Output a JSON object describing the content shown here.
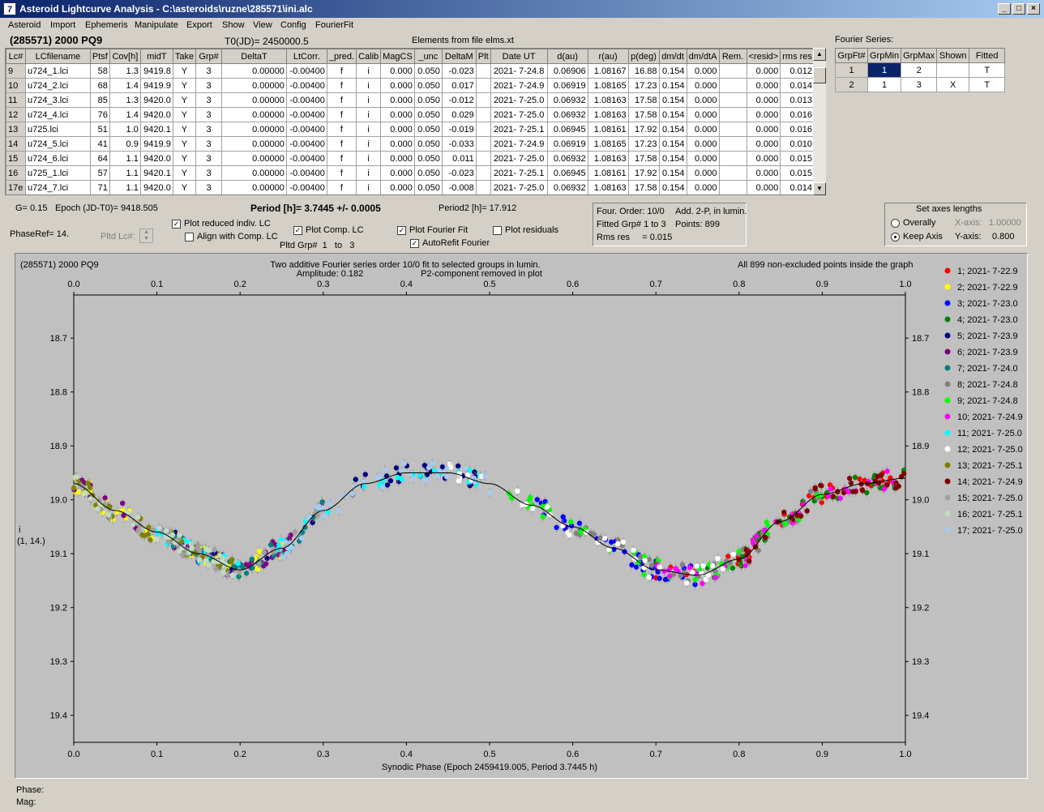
{
  "window": {
    "title": "Asteroid Lightcurve Analysis - C:\\asteroids\\ruzne\\285571\\ini.alc",
    "icon": "app-icon"
  },
  "menu": [
    "Asteroid",
    "Import",
    "Ephemeris",
    "Manipulate",
    "Export",
    "Show",
    "View",
    "Config",
    "FourierFit"
  ],
  "header": {
    "asteroid": "(285571) 2000 PQ9",
    "t0": "T0(JD)= 2450000.5",
    "elements": "Elements from file elms.xt",
    "fourier_series_label": "Fourier Series:"
  },
  "lc_table": {
    "columns": [
      "Lc#",
      "LCfilename",
      "Ptsf",
      "Cov[h]",
      "midT",
      "Take",
      "Grp#",
      "DeltaT",
      "LtCorr.",
      "_pred.",
      "Calib",
      "MagCS",
      "_unc",
      "DeltaM",
      "Plt",
      "Date UT",
      "d(au)",
      "r(au)",
      "p(deg)",
      "dm/dt",
      "dm/dtA",
      "Rem.",
      "<resid>",
      "rms res"
    ],
    "rows": [
      [
        "9",
        "u724_1.lci",
        "58",
        "1.3",
        "9419.8",
        "Y",
        "3",
        "0.00000",
        "-0.00400",
        "f",
        "i",
        "0.000",
        "0.050",
        "-0.023",
        "",
        "2021- 7-24.8",
        "0.06906",
        "1.08167",
        "16.88",
        "0.154",
        "0.000",
        "",
        "0.000",
        "0.012"
      ],
      [
        "10",
        "u724_2.lci",
        "68",
        "1.4",
        "9419.9",
        "Y",
        "3",
        "0.00000",
        "-0.00400",
        "f",
        "i",
        "0.000",
        "0.050",
        "0.017",
        "",
        "2021- 7-24.9",
        "0.06919",
        "1.08165",
        "17.23",
        "0.154",
        "0.000",
        "",
        "0.000",
        "0.014"
      ],
      [
        "11",
        "u724_3.lci",
        "85",
        "1.3",
        "9420.0",
        "Y",
        "3",
        "0.00000",
        "-0.00400",
        "f",
        "i",
        "0.000",
        "0.050",
        "-0.012",
        "",
        "2021- 7-25.0",
        "0.06932",
        "1.08163",
        "17.58",
        "0.154",
        "0.000",
        "",
        "0.000",
        "0.013"
      ],
      [
        "12",
        "u724_4.lci",
        "76",
        "1.4",
        "9420.0",
        "Y",
        "3",
        "0.00000",
        "-0.00400",
        "f",
        "i",
        "0.000",
        "0.050",
        "0.029",
        "",
        "2021- 7-25.0",
        "0.06932",
        "1.08163",
        "17.58",
        "0.154",
        "0.000",
        "",
        "0.000",
        "0.016"
      ],
      [
        "13",
        "u725.lci",
        "51",
        "1.0",
        "9420.1",
        "Y",
        "3",
        "0.00000",
        "-0.00400",
        "f",
        "i",
        "0.000",
        "0.050",
        "-0.019",
        "",
        "2021- 7-25.1",
        "0.06945",
        "1.08161",
        "17.92",
        "0.154",
        "0.000",
        "",
        "0.000",
        "0.016"
      ],
      [
        "14",
        "u724_5.lci",
        "41",
        "0.9",
        "9419.9",
        "Y",
        "3",
        "0.00000",
        "-0.00400",
        "f",
        "i",
        "0.000",
        "0.050",
        "-0.033",
        "",
        "2021- 7-24.9",
        "0.06919",
        "1.08165",
        "17.23",
        "0.154",
        "0.000",
        "",
        "0.000",
        "0.010"
      ],
      [
        "15",
        "u724_6.lci",
        "64",
        "1.1",
        "9420.0",
        "Y",
        "3",
        "0.00000",
        "-0.00400",
        "f",
        "i",
        "0.000",
        "0.050",
        "0.011",
        "",
        "2021- 7-25.0",
        "0.06932",
        "1.08163",
        "17.58",
        "0.154",
        "0.000",
        "",
        "0.000",
        "0.015"
      ],
      [
        "16",
        "u725_1.lci",
        "57",
        "1.1",
        "9420.1",
        "Y",
        "3",
        "0.00000",
        "-0.00400",
        "f",
        "i",
        "0.000",
        "0.050",
        "-0.023",
        "",
        "2021- 7-25.1",
        "0.06945",
        "1.08161",
        "17.92",
        "0.154",
        "0.000",
        "",
        "0.000",
        "0.015"
      ],
      [
        "17e",
        "u724_7.lci",
        "71",
        "1.1",
        "9420.0",
        "Y",
        "3",
        "0.00000",
        "-0.00400",
        "f",
        "i",
        "0.000",
        "0.050",
        "-0.008",
        "",
        "2021- 7-25.0",
        "0.06932",
        "1.08163",
        "17.58",
        "0.154",
        "0.000",
        "",
        "0.000",
        "0.014"
      ]
    ]
  },
  "fourier_table": {
    "columns": [
      "GrpFt#",
      "GrpMin",
      "GrpMax",
      "Shown",
      "Fitted"
    ],
    "rows": [
      [
        "1",
        "1",
        "2",
        "",
        "T"
      ],
      [
        "2",
        "1",
        "3",
        "X",
        "T"
      ]
    ]
  },
  "controls": {
    "g": "G= 0.15",
    "epoch": "Epoch (JD-T0)= 9418.505",
    "period": "Period [h]= 3.7445 +/- 0.0005",
    "period2": "Period2 [h]= 17.912",
    "phaseref": "PhaseRef= 14.",
    "pltd_lc": "Pltd Lc#:",
    "plot_reduced": "Plot reduced indiv. LC",
    "align_comp": "Align with Comp. LC",
    "plot_comp": "Plot Comp. LC",
    "pltd_grp": "Pltd Grp#",
    "grp_from": "1",
    "grp_to_label": "to",
    "grp_to": "3",
    "plot_fourier": "Plot Fourier Fit",
    "autorefit": "AutoRefit Fourier",
    "plot_residuals": "Plot residuals"
  },
  "fit_info": {
    "order": "Four. Order: 10/0",
    "add": "Add. 2-P, in lumin.",
    "fitted": "Fitted Grp# 1 to 3",
    "points": "Points: 899",
    "rms": "Rms res     = 0.015"
  },
  "axes_lengths": {
    "title": "Set axes lengths",
    "overally": "Overally",
    "keep": "Keep Axis",
    "xaxis_label": "X-axis:",
    "xaxis_value": "1.00000",
    "yaxis_label": "Y-axis:",
    "yaxis_value": "0.800"
  },
  "plot": {
    "name": "(285571) 2000 PQ9",
    "title1": "Two additive Fourier series order 10/0 fit to selected groups in lumin.",
    "title2": "Amplitude: 0.182",
    "title3": "P2-component removed in plot",
    "right_note": "All 899 non-excluded points inside the graph",
    "ylabel1": "i",
    "ylabel2": "(1, 14.)"
  },
  "status": {
    "phase": "Phase:",
    "mag": "Mag:"
  },
  "chart_data": {
    "type": "scatter",
    "xlabel": "Synodic Phase (Epoch 2459419.005, Period 3.7445 h)",
    "ylabel": "i",
    "xlim": [
      0,
      1
    ],
    "ylim": [
      19.45,
      18.62
    ],
    "y_inverted": true,
    "xticks": [
      0.0,
      0.1,
      0.2,
      0.3,
      0.4,
      0.5,
      0.6,
      0.7,
      0.8,
      0.9,
      1.0
    ],
    "xtick_labels": [
      "0.0",
      "0.1",
      "0.2",
      "0.3",
      "0.4",
      "0.5",
      "0.6",
      "0.7",
      "0.8",
      "0.9",
      "1.0"
    ],
    "yticks": [
      18.7,
      18.8,
      18.9,
      19.0,
      19.1,
      19.2,
      19.3,
      19.4
    ],
    "ytick_labels": [
      "18.7",
      "18.8",
      "18.9",
      "19.0",
      "19.1",
      "19.2",
      "19.3",
      "19.4"
    ],
    "fit_curve": {
      "x": [
        0.0,
        0.05,
        0.1,
        0.15,
        0.2,
        0.25,
        0.3,
        0.35,
        0.4,
        0.45,
        0.5,
        0.55,
        0.6,
        0.65,
        0.7,
        0.75,
        0.8,
        0.85,
        0.9,
        0.95,
        1.0
      ],
      "y": [
        18.97,
        19.02,
        19.06,
        19.1,
        19.13,
        19.09,
        19.02,
        18.97,
        18.95,
        18.95,
        18.97,
        19.01,
        19.05,
        19.09,
        19.13,
        19.14,
        19.11,
        19.04,
        18.99,
        18.97,
        18.96
      ]
    },
    "legend": [
      {
        "label": "1; 2021- 7-22.9",
        "color": "#ff0000",
        "range": [
          0.7,
          1.0
        ]
      },
      {
        "label": "2; 2021- 7-22.9",
        "color": "#ffff00",
        "range": [
          0.0,
          0.25
        ]
      },
      {
        "label": "3; 2021- 7-23.0",
        "color": "#0000ff",
        "range": [
          0.55,
          0.75
        ]
      },
      {
        "label": "4; 2021- 7-23.0",
        "color": "#008000",
        "range": [
          0.7,
          1.0
        ]
      },
      {
        "label": "5; 2021- 7-23.9",
        "color": "#000080",
        "range": [
          0.1,
          0.5
        ]
      },
      {
        "label": "6; 2021- 7-23.9",
        "color": "#800080",
        "range": [
          0.0,
          0.3
        ]
      },
      {
        "label": "7; 2021- 7-24.0",
        "color": "#008080",
        "range": [
          0.1,
          0.3
        ]
      },
      {
        "label": "8; 2021- 7-24.8",
        "color": "#808080",
        "range": [
          0.6,
          0.9
        ]
      },
      {
        "label": "9; 2021- 7-24.8",
        "color": "#00ff00",
        "range": [
          0.5,
          0.9
        ]
      },
      {
        "label": "10; 2021- 7-24.9",
        "color": "#ff00ff",
        "range": [
          0.7,
          1.0
        ]
      },
      {
        "label": "11; 2021- 7-25.0",
        "color": "#00ffff",
        "range": [
          0.1,
          0.5
        ]
      },
      {
        "label": "12; 2021- 7-25.0",
        "color": "#ffffff",
        "range": [
          0.45,
          0.8
        ]
      },
      {
        "label": "13; 2021- 7-25.1",
        "color": "#808000",
        "range": [
          0.0,
          0.2
        ]
      },
      {
        "label": "14; 2021- 7-24.9",
        "color": "#800000",
        "range": [
          0.8,
          1.0
        ]
      },
      {
        "label": "15; 2021- 7-25.0",
        "color": "#a0a0a0",
        "range": [
          0.0,
          0.3
        ]
      },
      {
        "label": "16; 2021- 7-25.1",
        "color": "#c0dcc0",
        "range": [
          0.0,
          0.2
        ]
      },
      {
        "label": "17; 2021- 7-25.0",
        "color": "#a6caf0",
        "range": [
          0.25,
          0.5
        ]
      }
    ]
  }
}
